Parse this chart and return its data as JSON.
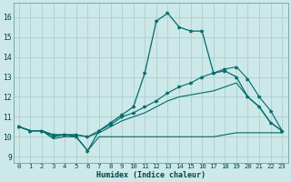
{
  "xlabel": "Humidex (Indice chaleur)",
  "bg_color": "#cde8e8",
  "grid_color": "#aacfcf",
  "line_color": "#006b6b",
  "xlim": [
    -0.5,
    23.5
  ],
  "ylim": [
    8.7,
    16.7
  ],
  "xticks": [
    0,
    1,
    2,
    3,
    4,
    5,
    6,
    7,
    8,
    9,
    10,
    11,
    12,
    13,
    14,
    15,
    16,
    17,
    18,
    19,
    20,
    21,
    22,
    23
  ],
  "yticks": [
    9,
    10,
    11,
    12,
    13,
    14,
    15,
    16
  ],
  "line1_x": [
    0,
    1,
    2,
    3,
    4,
    5,
    6,
    7,
    8,
    9,
    10,
    11,
    12,
    13,
    14,
    15,
    16,
    17,
    18,
    19,
    20,
    21,
    22,
    23
  ],
  "line1_y": [
    10.5,
    10.3,
    10.3,
    9.9,
    10.0,
    10.0,
    9.3,
    10.0,
    10.0,
    10.0,
    10.0,
    10.0,
    10.0,
    10.0,
    10.0,
    10.0,
    10.0,
    10.0,
    10.1,
    10.2,
    10.2,
    10.2,
    10.2,
    10.2
  ],
  "line2_x": [
    0,
    1,
    2,
    3,
    4,
    5,
    6,
    7,
    8,
    9,
    10,
    11,
    12,
    13,
    14,
    15,
    16,
    17,
    18,
    19,
    20,
    21,
    22,
    23
  ],
  "line2_y": [
    10.5,
    10.3,
    10.3,
    10.1,
    10.1,
    10.1,
    10.0,
    10.2,
    10.5,
    10.8,
    11.0,
    11.2,
    11.5,
    11.8,
    12.0,
    12.1,
    12.2,
    12.3,
    12.5,
    12.7,
    12.0,
    11.5,
    10.7,
    10.3
  ],
  "line3_x": [
    0,
    1,
    2,
    3,
    4,
    5,
    6,
    7,
    8,
    9,
    10,
    11,
    12,
    13,
    14,
    15,
    16,
    17,
    18,
    19,
    20,
    21,
    22,
    23
  ],
  "line3_y": [
    10.5,
    10.3,
    10.3,
    10.1,
    10.1,
    10.1,
    10.0,
    10.3,
    10.6,
    11.0,
    11.2,
    11.5,
    11.8,
    12.2,
    12.5,
    12.7,
    13.0,
    13.2,
    13.4,
    13.5,
    12.9,
    12.0,
    11.3,
    10.3
  ],
  "line4_x": [
    0,
    1,
    2,
    3,
    4,
    5,
    6,
    7,
    8,
    9,
    10,
    11,
    12,
    13,
    14,
    15,
    16,
    17,
    18,
    19,
    20,
    21,
    22,
    23
  ],
  "line4_y": [
    10.5,
    10.3,
    10.3,
    10.0,
    10.1,
    10.0,
    9.3,
    10.3,
    10.7,
    11.1,
    11.5,
    13.2,
    15.8,
    16.2,
    15.5,
    15.3,
    15.3,
    13.2,
    13.3,
    13.0,
    12.0,
    11.5,
    10.7,
    10.3
  ]
}
